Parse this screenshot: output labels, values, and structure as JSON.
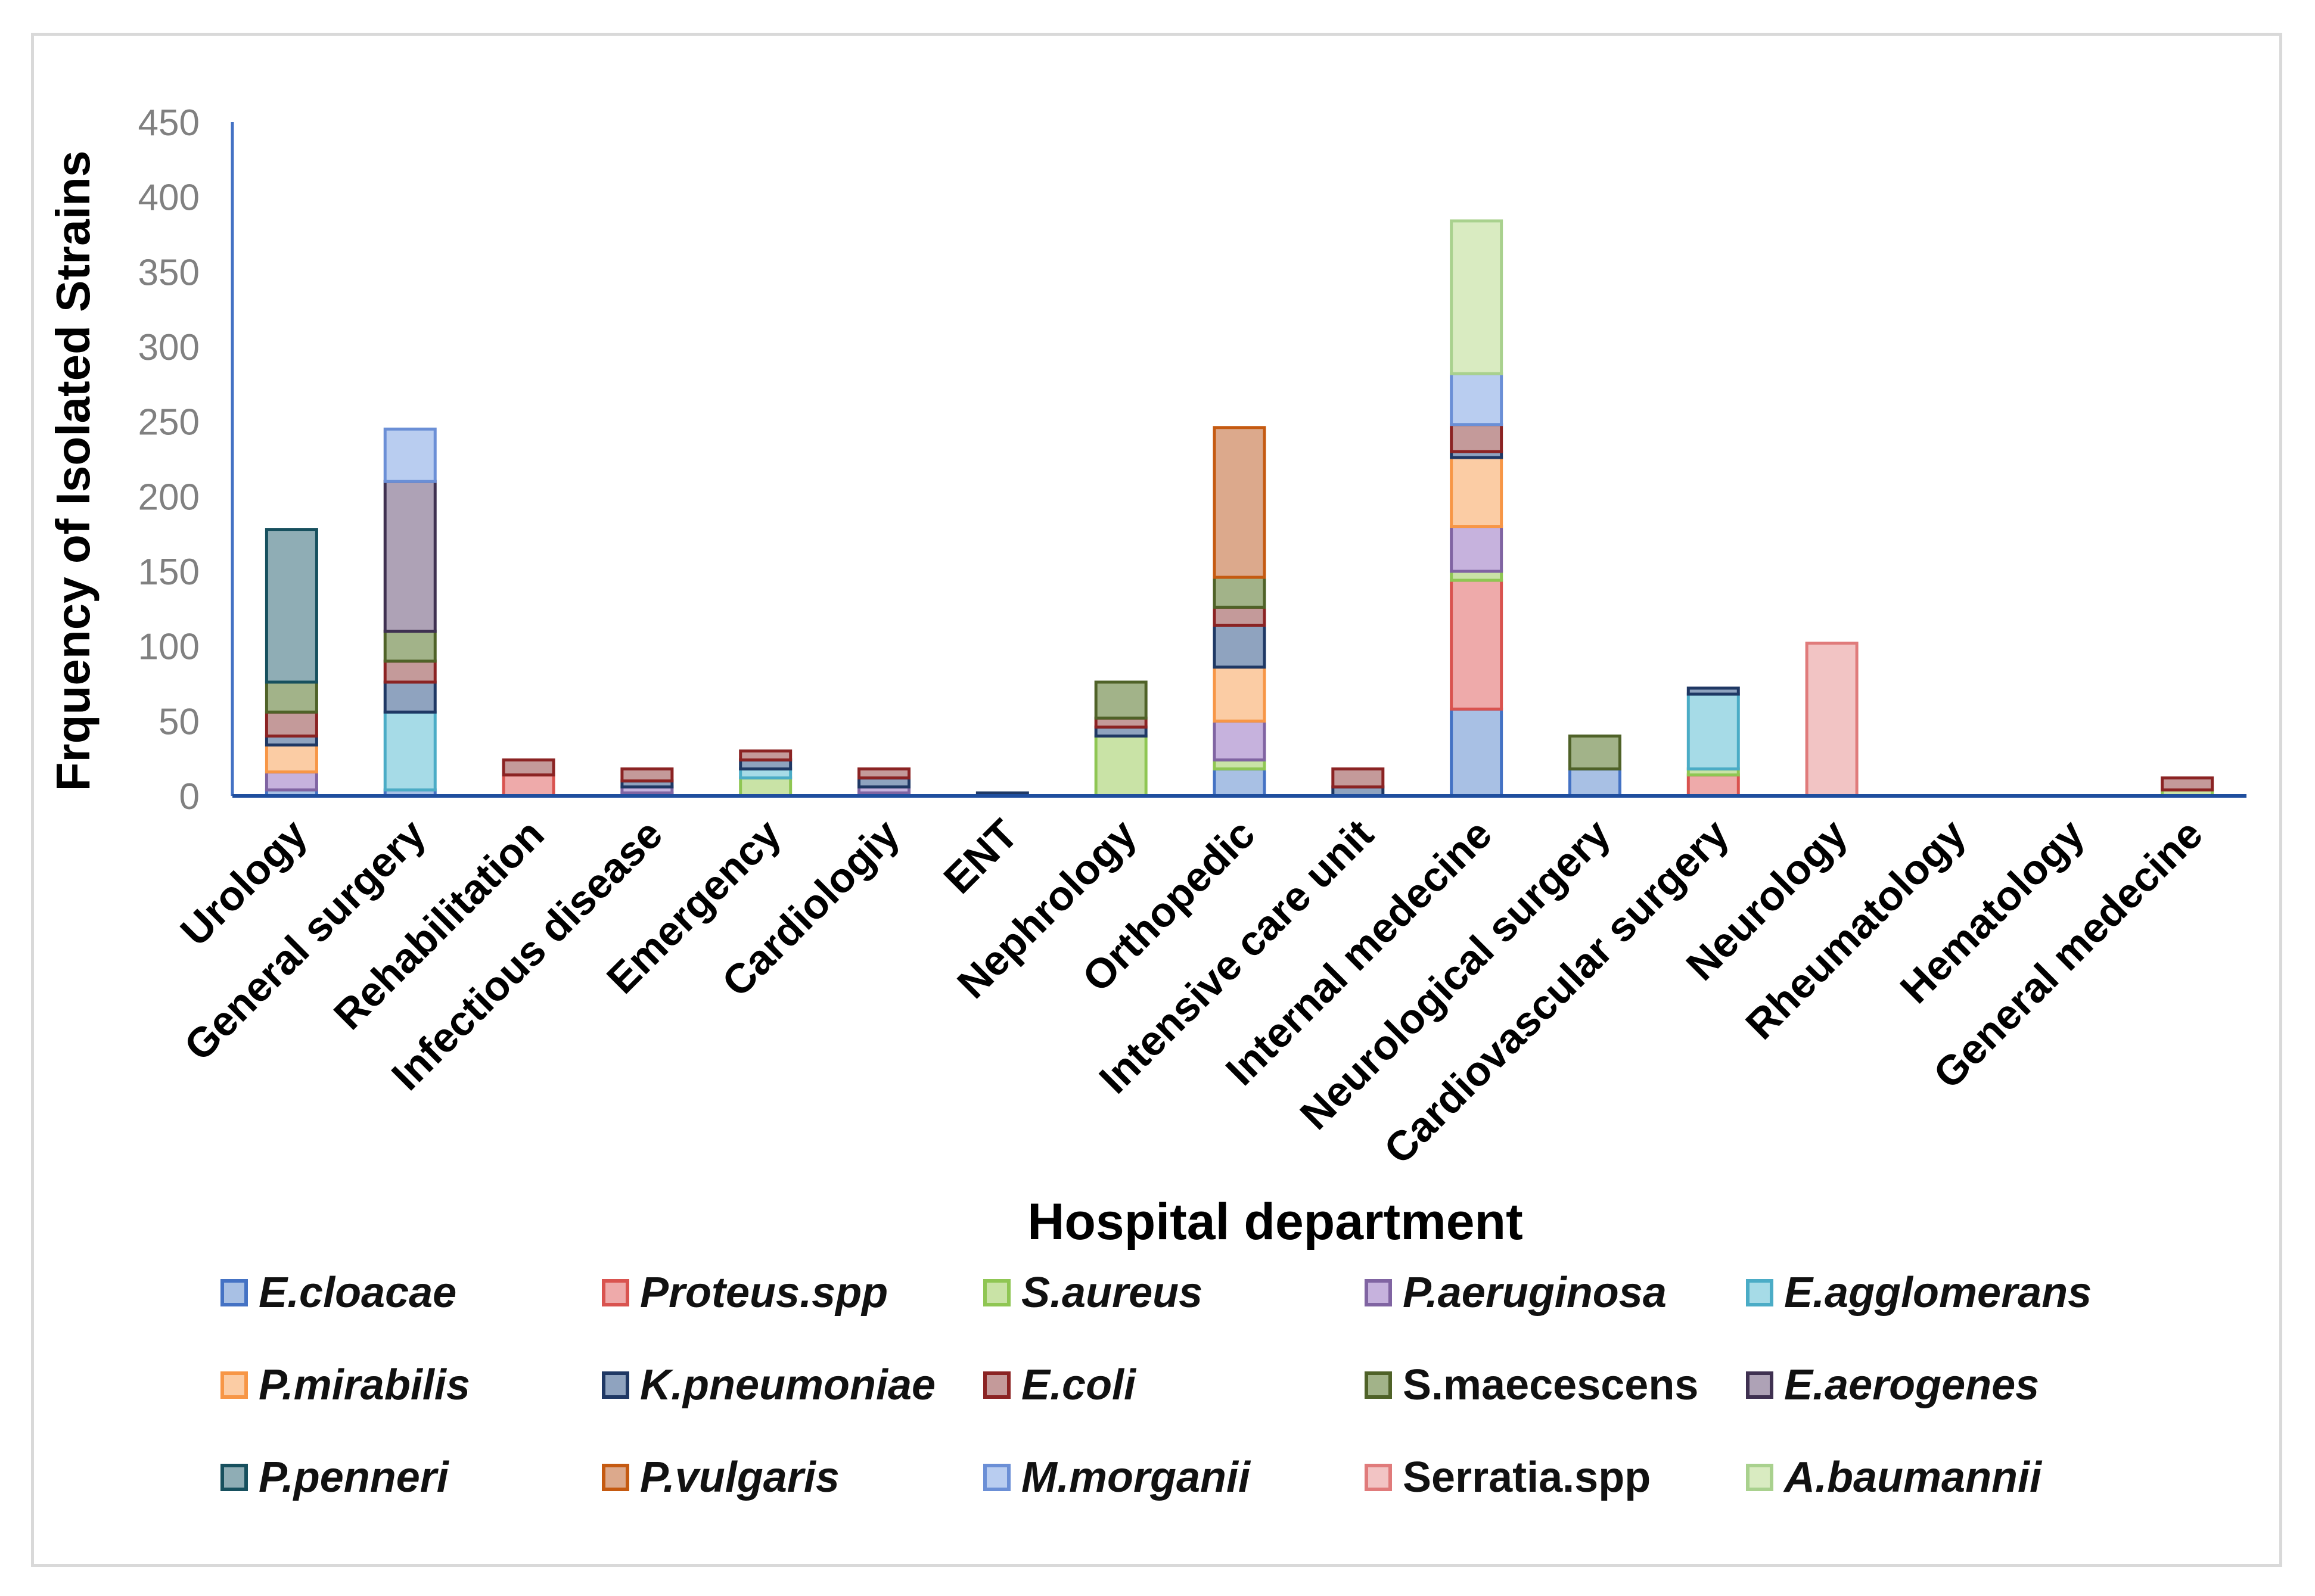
{
  "chart_data": {
    "type": "bar",
    "stacked": true,
    "ylabel": "Frquency of Isolated Strains",
    "xlabel": "Hospital department",
    "ylim": [
      0,
      450
    ],
    "yticks": [
      0,
      50,
      100,
      150,
      200,
      250,
      300,
      350,
      400,
      450
    ],
    "grid": false,
    "legend_position": "bottom",
    "categories": [
      "Urology",
      "General surgery",
      "Rehabilitation",
      "Infectious disease",
      "Emergency",
      "Cardiologiy",
      "ENT",
      "Nephrology",
      "Orthopedic",
      "Intensive care unit",
      "Internal medecine",
      "Neurological surgery",
      "Cardiovascular surgery",
      "Neurology",
      "Rheumatology",
      "Hematology",
      "General medecine"
    ],
    "series": [
      {
        "name": "E.cloacae",
        "italic": true,
        "fill": "#a8c0e4",
        "stroke": "#4472c4",
        "values": [
          4,
          4,
          0,
          2,
          0,
          2,
          0,
          0,
          18,
          0,
          58,
          18,
          0,
          0,
          0,
          0,
          0
        ]
      },
      {
        "name": "Proteus.spp",
        "italic": true,
        "fill": "#eeaaaa",
        "stroke": "#d9534f",
        "values": [
          0,
          0,
          14,
          0,
          0,
          0,
          0,
          0,
          0,
          0,
          86,
          0,
          14,
          0,
          0,
          0,
          0
        ]
      },
      {
        "name": "S.aureus",
        "italic": true,
        "fill": "#c9e3a6",
        "stroke": "#8fc653",
        "values": [
          0,
          0,
          0,
          0,
          12,
          0,
          0,
          40,
          6,
          0,
          6,
          0,
          4,
          0,
          0,
          0,
          4
        ]
      },
      {
        "name": "P.aeruginosa",
        "italic": true,
        "fill": "#c6b2dd",
        "stroke": "#8064a2",
        "values": [
          12,
          0,
          0,
          4,
          0,
          4,
          0,
          0,
          26,
          0,
          30,
          0,
          0,
          0,
          0,
          0,
          0
        ]
      },
      {
        "name": "E.agglomerans",
        "italic": true,
        "fill": "#a6dbe7",
        "stroke": "#4bacc6",
        "values": [
          0,
          52,
          0,
          0,
          6,
          0,
          0,
          0,
          0,
          0,
          0,
          0,
          50,
          0,
          0,
          0,
          0
        ]
      },
      {
        "name": "P.mirabilis",
        "italic": true,
        "fill": "#fbcca4",
        "stroke": "#f79646",
        "values": [
          18,
          0,
          0,
          0,
          0,
          0,
          0,
          0,
          36,
          0,
          46,
          0,
          0,
          0,
          0,
          0,
          0
        ]
      },
      {
        "name": "K.pneumoniae",
        "italic": true,
        "fill": "#8fa3bf",
        "stroke": "#1f3864",
        "values": [
          6,
          20,
          0,
          4,
          6,
          6,
          2,
          6,
          28,
          6,
          4,
          0,
          4,
          0,
          0,
          0,
          0
        ]
      },
      {
        "name": "E.coli",
        "italic": true,
        "fill": "#c49a9a",
        "stroke": "#8b2323",
        "values": [
          16,
          14,
          10,
          8,
          6,
          6,
          0,
          6,
          12,
          12,
          18,
          0,
          0,
          0,
          0,
          0,
          8
        ]
      },
      {
        "name": "S.maecescens",
        "italic": false,
        "fill": "#a2b389",
        "stroke": "#4f6228",
        "values": [
          20,
          20,
          0,
          0,
          0,
          0,
          0,
          24,
          20,
          0,
          0,
          22,
          0,
          0,
          0,
          0,
          0
        ]
      },
      {
        "name": "E.aerogenes",
        "italic": true,
        "fill": "#aea2b6",
        "stroke": "#3f3151",
        "values": [
          0,
          100,
          0,
          0,
          0,
          0,
          0,
          0,
          0,
          0,
          0,
          0,
          0,
          0,
          0,
          0,
          0
        ]
      },
      {
        "name": "P.penneri",
        "italic": true,
        "fill": "#8fadb5",
        "stroke": "#17505e",
        "values": [
          102,
          0,
          0,
          0,
          0,
          0,
          0,
          0,
          0,
          0,
          0,
          0,
          0,
          0,
          0,
          0,
          0
        ]
      },
      {
        "name": "P.vulgaris",
        "italic": true,
        "fill": "#dca98c",
        "stroke": "#c55a11",
        "values": [
          0,
          0,
          0,
          0,
          0,
          0,
          0,
          0,
          100,
          0,
          0,
          0,
          0,
          0,
          0,
          0,
          0
        ]
      },
      {
        "name": "M.morganii",
        "italic": true,
        "fill": "#b9cdf0",
        "stroke": "#6b8fd6",
        "values": [
          0,
          35,
          0,
          0,
          0,
          0,
          0,
          0,
          0,
          0,
          34,
          0,
          0,
          0,
          0,
          0,
          0
        ]
      },
      {
        "name": "Serratia.spp",
        "italic": false,
        "fill": "#f2c4c4",
        "stroke": "#e07b7b",
        "values": [
          0,
          0,
          0,
          0,
          0,
          0,
          0,
          0,
          0,
          0,
          0,
          0,
          0,
          102,
          0,
          0,
          0
        ]
      },
      {
        "name": "A.baumannii",
        "italic": true,
        "fill": "#d9ebc1",
        "stroke": "#a9d18e",
        "values": [
          0,
          0,
          0,
          0,
          0,
          0,
          0,
          0,
          0,
          0,
          102,
          0,
          0,
          0,
          0,
          0,
          0
        ]
      }
    ]
  }
}
